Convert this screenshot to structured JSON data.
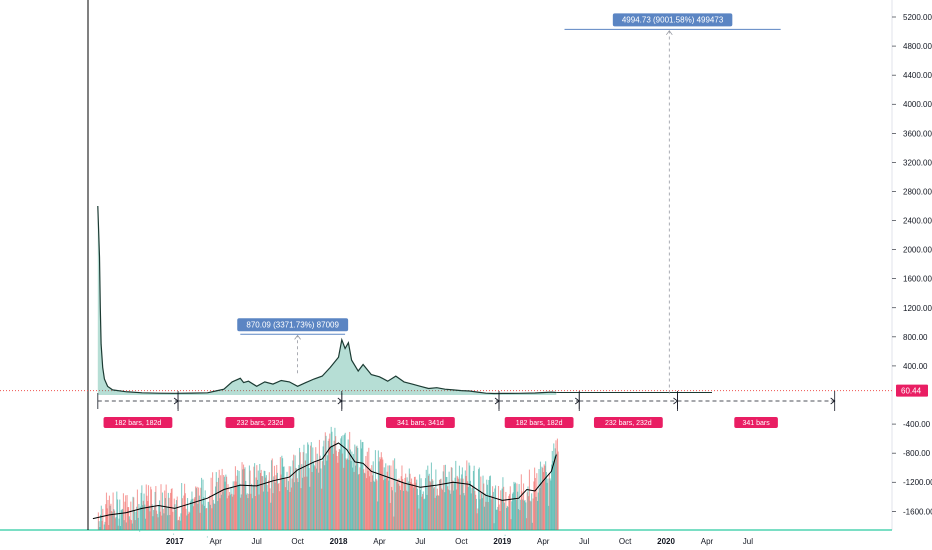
{
  "chart_data": {
    "type": "line",
    "title": "",
    "y_axis": {
      "ticks": [
        "5200.00",
        "4800.00",
        "4400.00",
        "4000.00",
        "3600.00",
        "3200.00",
        "2800.00",
        "2400.00",
        "2000.00",
        "1600.00",
        "1200.00",
        "800.00",
        "400.00",
        "-400.00",
        "-800.00",
        "-1200.00",
        "-1600.00"
      ],
      "range": [
        -1800,
        5400
      ]
    },
    "x_axis": {
      "labels": [
        {
          "text": "2017",
          "bold": true
        },
        {
          "text": "Apr",
          "bold": false
        },
        {
          "text": "Jul",
          "bold": false
        },
        {
          "text": "Oct",
          "bold": false
        },
        {
          "text": "2018",
          "bold": true
        },
        {
          "text": "Apr",
          "bold": false
        },
        {
          "text": "Jul",
          "bold": false
        },
        {
          "text": "Oct",
          "bold": false
        },
        {
          "text": "2019",
          "bold": true
        },
        {
          "text": "Apr",
          "bold": false
        },
        {
          "text": "Jul",
          "bold": false
        },
        {
          "text": "Oct",
          "bold": false
        },
        {
          "text": "2020",
          "bold": true
        },
        {
          "text": "Apr",
          "bold": false
        },
        {
          "text": "Jul",
          "bold": false
        }
      ],
      "label_times": [
        2017.0,
        2017.25,
        2017.5,
        2017.75,
        2018.0,
        2018.25,
        2018.5,
        2018.75,
        2019.0,
        2019.25,
        2019.5,
        2019.75,
        2020.0,
        2020.25,
        2020.5
      ],
      "range": [
        2016.47,
        2021.38
      ]
    },
    "current_price": {
      "value": 60.44,
      "label": "60.44"
    },
    "series": [
      {
        "values": [
          [
            2016.53,
            2600
          ],
          [
            2016.54,
            1900
          ],
          [
            2016.545,
            1200
          ],
          [
            2016.55,
            700
          ],
          [
            2016.56,
            380
          ],
          [
            2016.57,
            220
          ],
          [
            2016.59,
            120
          ],
          [
            2016.62,
            70
          ],
          [
            2016.7,
            45
          ],
          [
            2016.8,
            30
          ],
          [
            2016.9,
            25
          ],
          [
            2017.0,
            24
          ],
          [
            2017.1,
            26
          ],
          [
            2017.2,
            30
          ],
          [
            2017.25,
            55
          ],
          [
            2017.3,
            80
          ],
          [
            2017.35,
            180
          ],
          [
            2017.4,
            230
          ],
          [
            2017.42,
            170
          ],
          [
            2017.45,
            190
          ],
          [
            2017.5,
            120
          ],
          [
            2017.55,
            180
          ],
          [
            2017.6,
            150
          ],
          [
            2017.65,
            200
          ],
          [
            2017.7,
            180
          ],
          [
            2017.75,
            120
          ],
          [
            2017.8,
            170
          ],
          [
            2017.85,
            220
          ],
          [
            2017.9,
            260
          ],
          [
            2017.95,
            380
          ],
          [
            2018.0,
            520
          ],
          [
            2018.02,
            760
          ],
          [
            2018.04,
            640
          ],
          [
            2018.06,
            720
          ],
          [
            2018.08,
            480
          ],
          [
            2018.12,
            330
          ],
          [
            2018.15,
            420
          ],
          [
            2018.2,
            280
          ],
          [
            2018.25,
            250
          ],
          [
            2018.3,
            190
          ],
          [
            2018.35,
            260
          ],
          [
            2018.4,
            180
          ],
          [
            2018.45,
            150
          ],
          [
            2018.5,
            120
          ],
          [
            2018.55,
            90
          ],
          [
            2018.6,
            100
          ],
          [
            2018.65,
            80
          ],
          [
            2018.7,
            70
          ],
          [
            2018.75,
            60
          ],
          [
            2018.8,
            55
          ],
          [
            2018.85,
            40
          ],
          [
            2018.9,
            25
          ],
          [
            2018.95,
            20
          ],
          [
            2019.0,
            22
          ],
          [
            2019.1,
            24
          ],
          [
            2019.2,
            28
          ],
          [
            2019.3,
            40
          ],
          [
            2019.33,
            35
          ]
        ]
      }
    ],
    "volume": {
      "oscillator_values": [
        [
          2016.5,
          -1700
        ],
        [
          2016.6,
          -1650
        ],
        [
          2016.7,
          -1620
        ],
        [
          2016.8,
          -1560
        ],
        [
          2016.9,
          -1520
        ],
        [
          2017.0,
          -1560
        ],
        [
          2017.1,
          -1490
        ],
        [
          2017.2,
          -1420
        ],
        [
          2017.3,
          -1300
        ],
        [
          2017.4,
          -1240
        ],
        [
          2017.5,
          -1250
        ],
        [
          2017.6,
          -1180
        ],
        [
          2017.7,
          -1130
        ],
        [
          2017.75,
          -1030
        ],
        [
          2017.85,
          -920
        ],
        [
          2017.9,
          -880
        ],
        [
          2017.95,
          -720
        ],
        [
          2018.0,
          -660
        ],
        [
          2018.05,
          -750
        ],
        [
          2018.1,
          -920
        ],
        [
          2018.15,
          -940
        ],
        [
          2018.2,
          -1050
        ],
        [
          2018.3,
          -1130
        ],
        [
          2018.4,
          -1210
        ],
        [
          2018.5,
          -1270
        ],
        [
          2018.6,
          -1240
        ],
        [
          2018.7,
          -1200
        ],
        [
          2018.8,
          -1230
        ],
        [
          2018.9,
          -1380
        ],
        [
          2019.0,
          -1450
        ],
        [
          2019.1,
          -1420
        ],
        [
          2019.15,
          -1300
        ],
        [
          2019.2,
          -1320
        ],
        [
          2019.25,
          -1180
        ],
        [
          2019.3,
          -1050
        ],
        [
          2019.33,
          -820
        ]
      ]
    },
    "callouts": [
      {
        "text": "870.09 (3371.73%) 87009",
        "x_start": 2017.4,
        "x_end": 2018.04,
        "y": 835,
        "arrow_x": 2017.75,
        "arrow_from": 300,
        "arrow_to": 820
      },
      {
        "text": "4994.73 (9001.58%) 499473",
        "x_start": 2019.38,
        "x_end": 2020.7,
        "y": 5030,
        "arrow_x": 2020.02,
        "arrow_from": 20,
        "arrow_to": 5010
      }
    ],
    "ranges": [
      {
        "label": "182 bars, 182d",
        "x_start": 2016.53,
        "x_end": 2017.02
      },
      {
        "label": "232 bars, 232d",
        "x_start": 2017.02,
        "x_end": 2018.02
      },
      {
        "label": "341 bars, 341d",
        "x_start": 2018.02,
        "x_end": 2018.98
      },
      {
        "label": "182 bars, 182d",
        "x_start": 2018.98,
        "x_end": 2019.47
      },
      {
        "label": "232 bars, 232d",
        "x_start": 2019.47,
        "x_end": 2020.07
      },
      {
        "label": "341 bars",
        "x_start": 2020.07,
        "x_end": 2021.03
      }
    ],
    "grid": false,
    "colors": {
      "line": "#1c3b33",
      "fill": "#2ea086",
      "volume_up": "#26a69a",
      "volume_down": "#ef5350",
      "oscillator": "#000000",
      "callout": "#5b85c3",
      "range_badge": "#e91e63",
      "price_line": "#ef5350",
      "price_badge": "#e91e63",
      "bottom_rule": "#4ed3b0"
    }
  }
}
